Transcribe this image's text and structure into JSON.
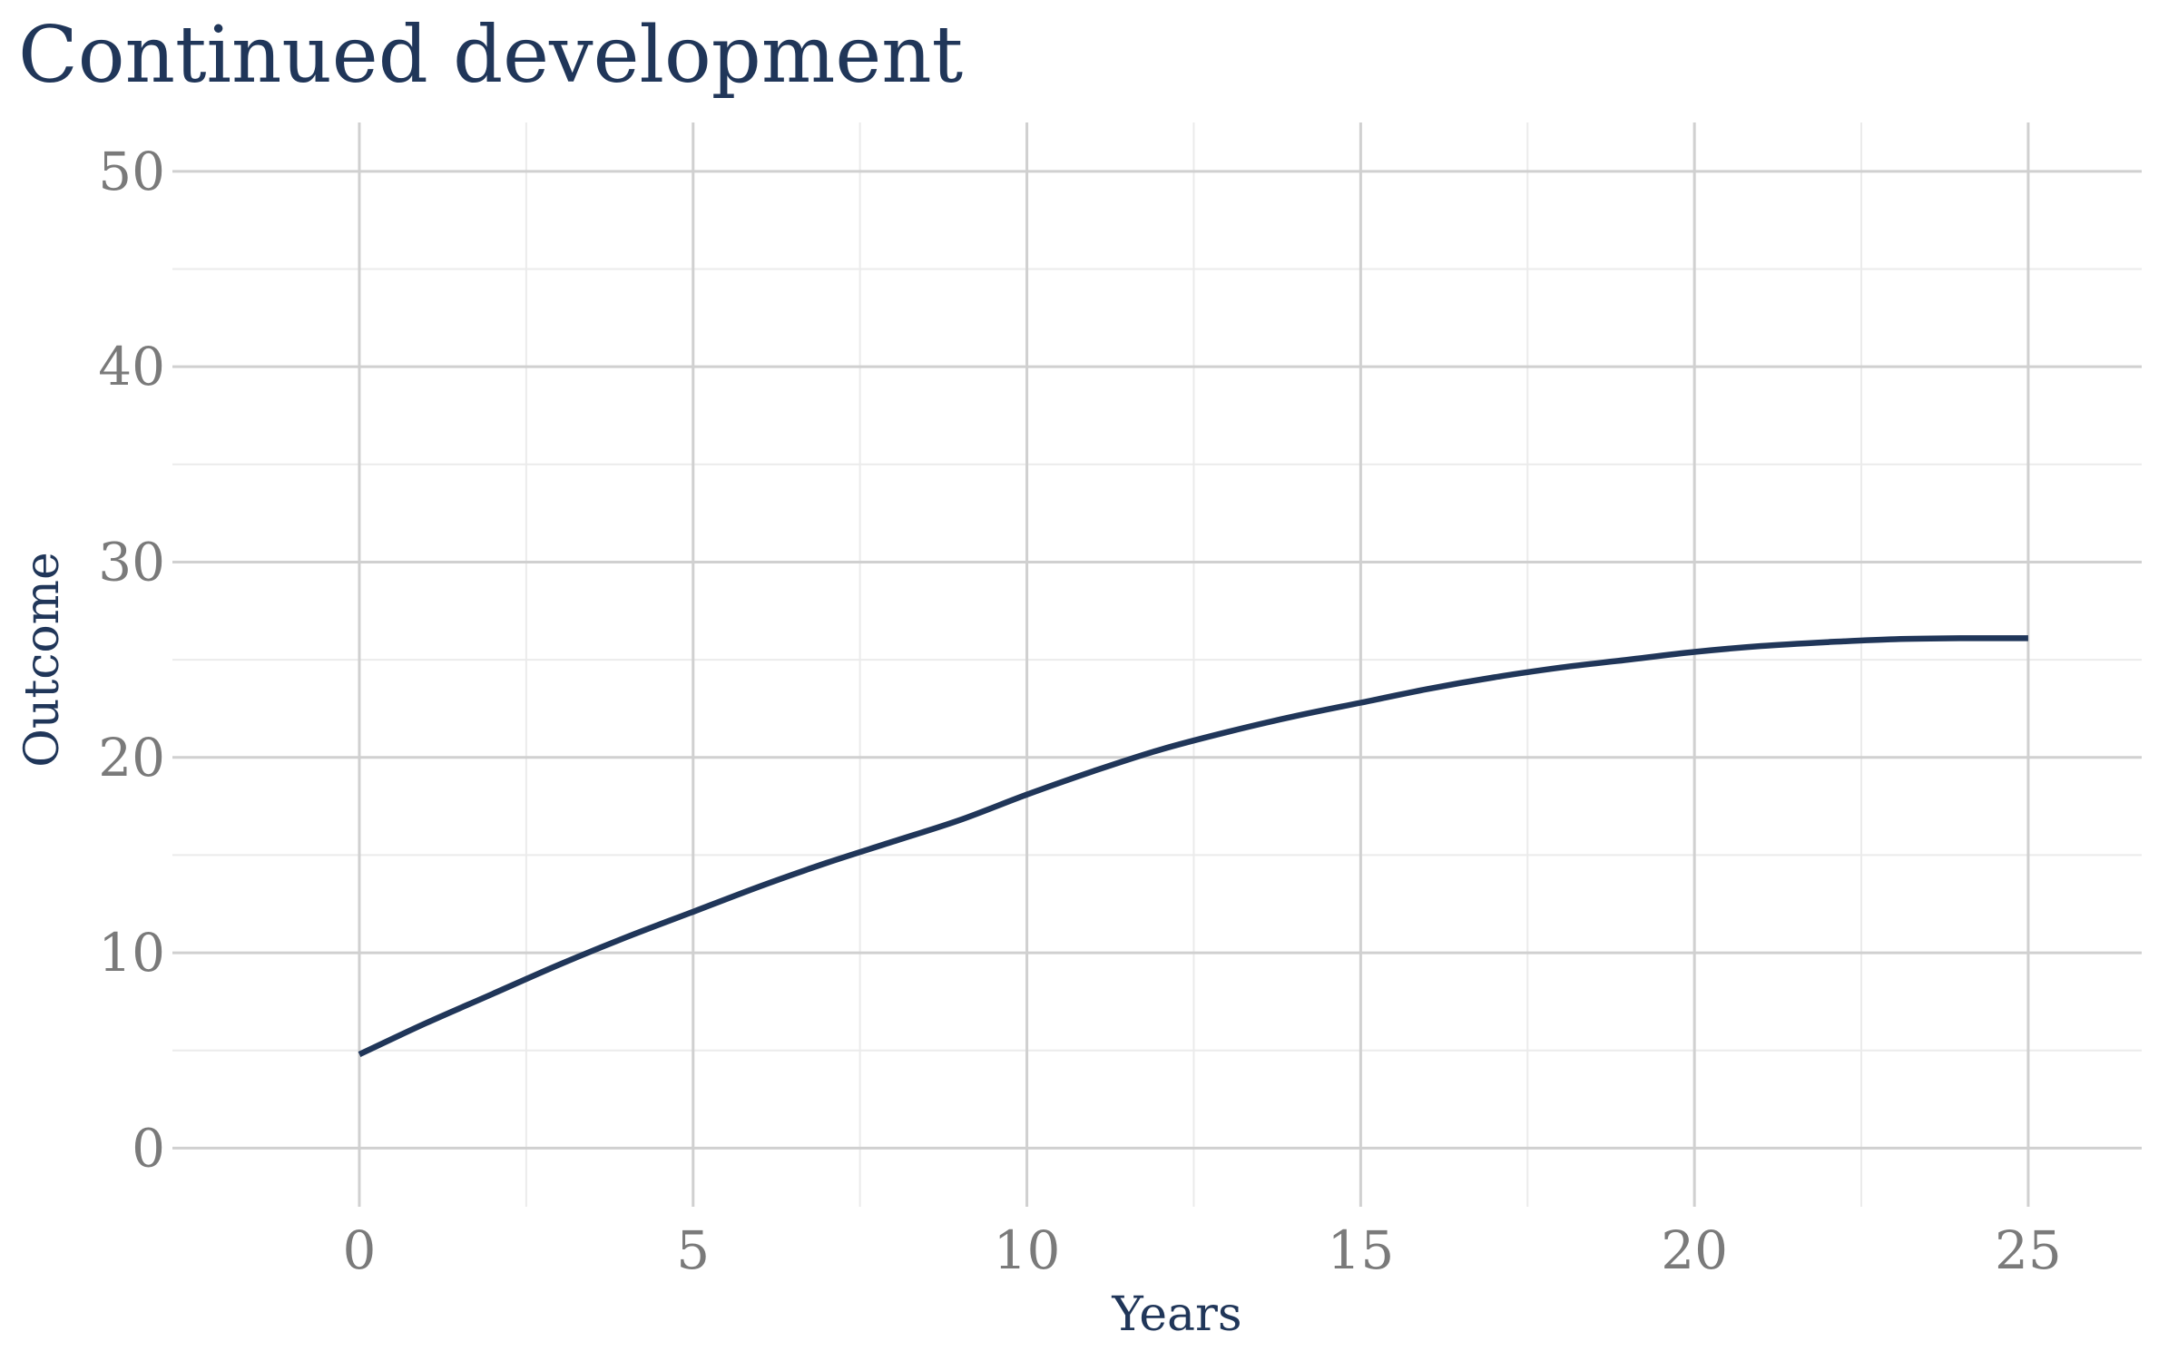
{
  "chart_data": {
    "type": "line",
    "title": "Continued development",
    "xlabel": "Years",
    "ylabel": "Outcome",
    "xlim": [
      -2.8,
      26.7
    ],
    "ylim": [
      -3,
      52.5
    ],
    "x_major_ticks": [
      0,
      5,
      10,
      15,
      20,
      25
    ],
    "x_minor_ticks": [
      2.5,
      7.5,
      12.5,
      17.5,
      22.5
    ],
    "y_major_ticks": [
      0,
      10,
      20,
      30,
      40,
      50
    ],
    "y_minor_ticks": [
      5,
      15,
      25,
      35,
      45
    ],
    "grid": true,
    "legend": "none",
    "colors": {
      "line": "#203659",
      "title": "#203659",
      "tick_labels": "#7a7a7a"
    },
    "series": [
      {
        "x": [
          0,
          1,
          2,
          3,
          4,
          5,
          6,
          7,
          8,
          9,
          10,
          11,
          12,
          13,
          14,
          15,
          16,
          17,
          18,
          19,
          20,
          21,
          22,
          23,
          24,
          25
        ],
        "values": [
          4.8,
          6.4,
          7.9,
          9.4,
          10.8,
          12.1,
          13.4,
          14.6,
          15.7,
          16.8,
          18.1,
          19.3,
          20.4,
          21.3,
          22.1,
          22.8,
          23.5,
          24.1,
          24.6,
          25.0,
          25.4,
          25.7,
          25.9,
          26.05,
          26.1,
          26.1
        ]
      }
    ]
  }
}
